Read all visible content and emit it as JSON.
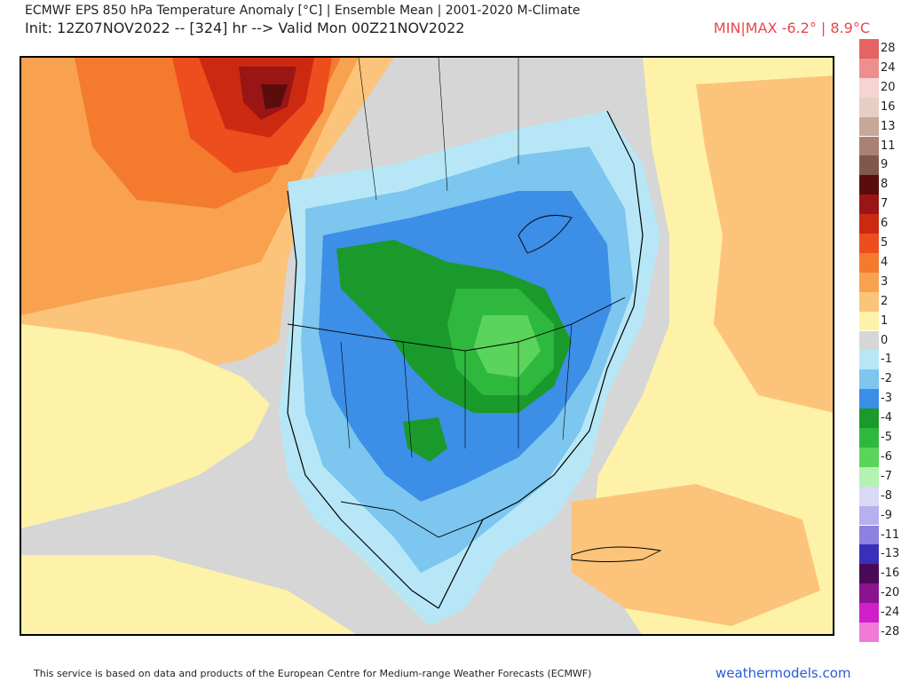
{
  "header": {
    "title_line1": "ECMWF EPS 850 hPa Temperature Anomaly [°C] | Ensemble Mean | 2001-2020 M-Climate",
    "title_line2": "Init: 12Z07NOV2022 -- [324] hr --> Valid Mon 00Z21NOV2022",
    "minmax": "MIN|MAX -6.2° | 8.9°C",
    "minmax_color": "#e8474b"
  },
  "legend": {
    "items": [
      {
        "label": "28",
        "color": "#e46363"
      },
      {
        "label": "24",
        "color": "#ee8f8f"
      },
      {
        "label": "20",
        "color": "#f7d3d3"
      },
      {
        "label": "16",
        "color": "#e7cec4"
      },
      {
        "label": "13",
        "color": "#c7a79a"
      },
      {
        "label": "11",
        "color": "#a98273"
      },
      {
        "label": "9",
        "color": "#7f5a4b"
      },
      {
        "label": "8",
        "color": "#5b0d0d"
      },
      {
        "label": "7",
        "color": "#9a1515"
      },
      {
        "label": "6",
        "color": "#cc2a10"
      },
      {
        "label": "5",
        "color": "#ee4d1e"
      },
      {
        "label": "4",
        "color": "#f47a2e"
      },
      {
        "label": "3",
        "color": "#f8a14e"
      },
      {
        "label": "2",
        "color": "#fbc47a"
      },
      {
        "label": "1",
        "color": "#fef2a8"
      },
      {
        "label": "0",
        "color": "#d6d6d6"
      },
      {
        "label": "-1",
        "color": "#b7e7f7"
      },
      {
        "label": "-2",
        "color": "#7cc6ef"
      },
      {
        "label": "-3",
        "color": "#3c8ee6"
      },
      {
        "label": "-4",
        "color": "#1a9a2a"
      },
      {
        "label": "-5",
        "color": "#2eb83e"
      },
      {
        "label": "-6",
        "color": "#5ad45a"
      },
      {
        "label": "-7",
        "color": "#b2f2b2"
      },
      {
        "label": "-8",
        "color": "#d9d9f5"
      },
      {
        "label": "-9",
        "color": "#b6b0ee"
      },
      {
        "label": "-11",
        "color": "#8c80e0"
      },
      {
        "label": "-13",
        "color": "#3a2fb8"
      },
      {
        "label": "-16",
        "color": "#4a0a58"
      },
      {
        "label": "-20",
        "color": "#8a1490"
      },
      {
        "label": "-24",
        "color": "#d01fc8"
      },
      {
        "label": "-28",
        "color": "#f07ad8"
      }
    ]
  },
  "footer": {
    "credit": "This service is based on data and products of the European Centre for Medium-range Weather Forecasts (ECMWF)",
    "brand": "weathermodels.com",
    "brand_color": "#2a5bd7"
  }
}
